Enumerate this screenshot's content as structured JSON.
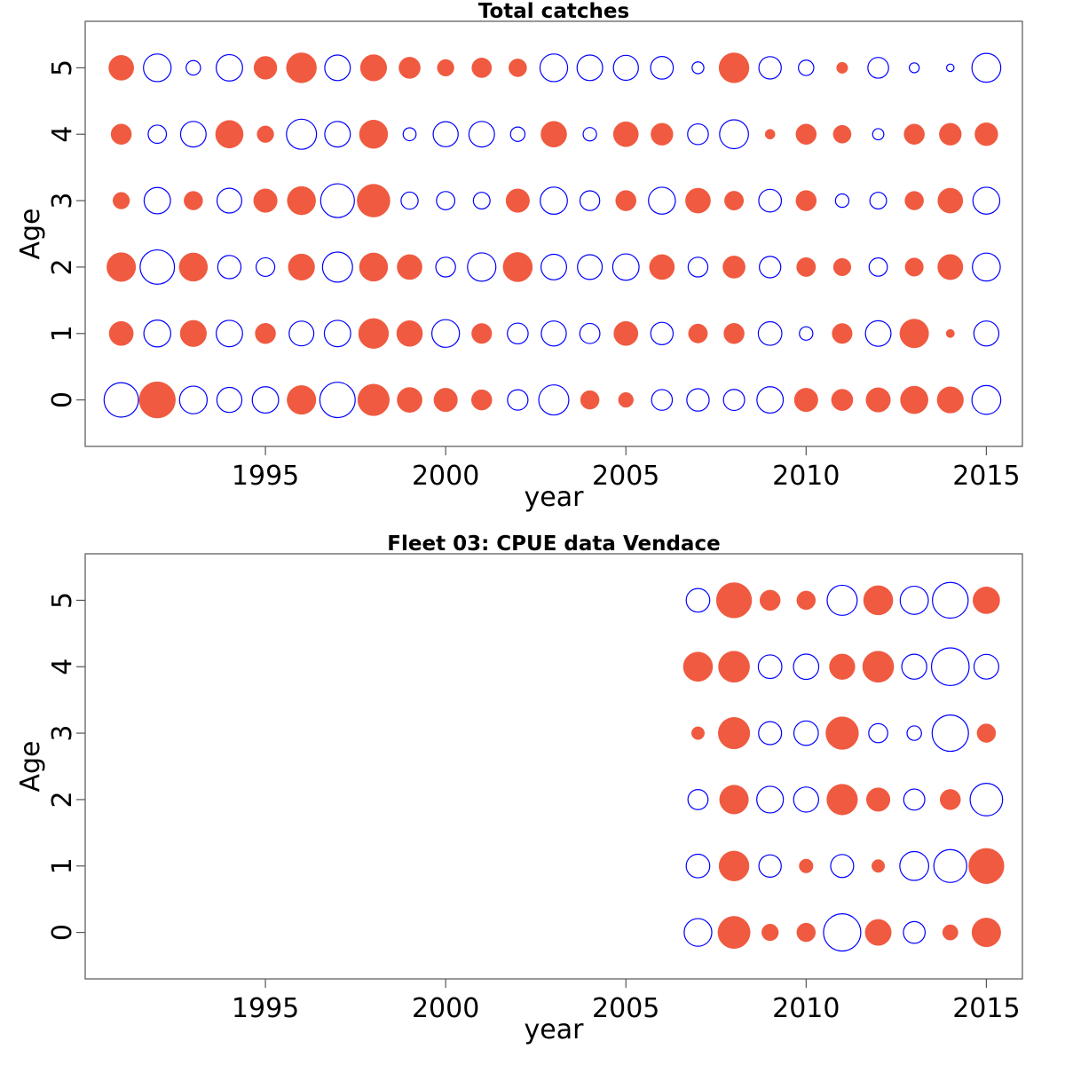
{
  "colors": {
    "positive": "#f05a40",
    "negative": "#0000ff",
    "frame": "#555555"
  },
  "chart_data": [
    {
      "type": "scatter",
      "title": "Total catches",
      "xlabel": "year",
      "ylabel": "Age",
      "xlim": [
        1990,
        2016
      ],
      "ylim": [
        -0.7,
        5.7
      ],
      "xticks": [
        1995,
        2000,
        2005,
        2010,
        2015
      ],
      "yticks": [
        0,
        1,
        2,
        3,
        4,
        5
      ],
      "years": [
        1991,
        1992,
        1993,
        1994,
        1995,
        1996,
        1997,
        1998,
        1999,
        2000,
        2001,
        2002,
        2003,
        2004,
        2005,
        2006,
        2007,
        2008,
        2009,
        2010,
        2011,
        2012,
        2013,
        2014,
        2015
      ],
      "residuals": {
        "5": [
          0.45,
          -0.55,
          -0.15,
          -0.5,
          0.38,
          0.65,
          -0.47,
          0.5,
          0.33,
          0.2,
          0.28,
          0.23,
          -0.55,
          -0.47,
          -0.45,
          -0.37,
          -0.1,
          0.65,
          -0.36,
          -0.17,
          0.09,
          -0.31,
          -0.07,
          -0.04,
          -0.6
        ],
        "4": [
          0.3,
          -0.24,
          -0.47,
          0.55,
          0.2,
          -0.65,
          -0.47,
          0.58,
          -0.12,
          -0.45,
          -0.47,
          -0.15,
          0.48,
          -0.13,
          0.45,
          0.35,
          -0.31,
          -0.6,
          0.07,
          0.3,
          0.23,
          -0.09,
          0.3,
          0.35,
          0.38
        ],
        "3": [
          0.2,
          -0.5,
          0.25,
          -0.44,
          0.4,
          0.58,
          -0.82,
          0.78,
          -0.21,
          -0.24,
          -0.2,
          0.4,
          -0.53,
          -0.28,
          0.3,
          -0.52,
          0.45,
          0.26,
          -0.37,
          0.3,
          -0.13,
          -0.2,
          0.25,
          0.45,
          -0.52
        ],
        "2": [
          0.6,
          -0.85,
          0.58,
          -0.39,
          -0.25,
          0.5,
          -0.65,
          0.58,
          0.45,
          -0.28,
          -0.58,
          0.62,
          -0.47,
          -0.44,
          -0.5,
          0.45,
          -0.28,
          0.36,
          -0.33,
          0.26,
          0.22,
          -0.24,
          0.24,
          0.46,
          -0.56
        ],
        "1": [
          0.42,
          -0.52,
          0.5,
          -0.5,
          0.3,
          -0.44,
          -0.5,
          0.65,
          0.48,
          -0.55,
          0.29,
          -0.31,
          -0.45,
          -0.29,
          0.42,
          -0.36,
          0.26,
          0.3,
          -0.4,
          -0.13,
          0.29,
          -0.47,
          0.6,
          0.05,
          -0.45
        ],
        "0": [
          -0.85,
          0.95,
          -0.55,
          -0.45,
          -0.5,
          0.6,
          -0.9,
          0.72,
          0.45,
          0.4,
          0.3,
          -0.3,
          -0.65,
          0.25,
          0.16,
          -0.31,
          -0.36,
          -0.32,
          -0.5,
          0.4,
          0.33,
          0.43,
          0.55,
          0.5,
          -0.6
        ]
      }
    },
    {
      "type": "scatter",
      "title": "Fleet 03:  CPUE data Vendace",
      "xlabel": "year",
      "ylabel": "Age",
      "xlim": [
        1990,
        2016
      ],
      "ylim": [
        -0.7,
        5.7
      ],
      "xticks": [
        1995,
        2000,
        2005,
        2010,
        2015
      ],
      "yticks": [
        0,
        1,
        2,
        3,
        4,
        5
      ],
      "years": [
        2007,
        2008,
        2009,
        2010,
        2011,
        2012,
        2013,
        2014,
        2015
      ],
      "residuals": {
        "5": [
          -0.4,
          0.9,
          0.3,
          0.25,
          -0.65,
          0.62,
          -0.57,
          -0.92,
          0.52
        ],
        "4": [
          0.62,
          0.7,
          -0.4,
          -0.46,
          0.47,
          0.7,
          -0.45,
          -1.02,
          -0.44
        ],
        "3": [
          0.12,
          0.72,
          -0.38,
          -0.43,
          0.77,
          -0.26,
          -0.15,
          -0.95,
          0.25
        ],
        "2": [
          -0.29,
          0.6,
          -0.51,
          -0.45,
          0.68,
          0.4,
          -0.32,
          0.3,
          -0.76
        ],
        "1": [
          -0.4,
          0.65,
          -0.36,
          0.14,
          -0.38,
          0.12,
          -0.6,
          -0.78,
          0.9
        ],
        "0": [
          -0.55,
          0.75,
          0.2,
          0.25,
          -1.0,
          0.49,
          -0.34,
          0.17,
          0.6
        ]
      }
    }
  ]
}
